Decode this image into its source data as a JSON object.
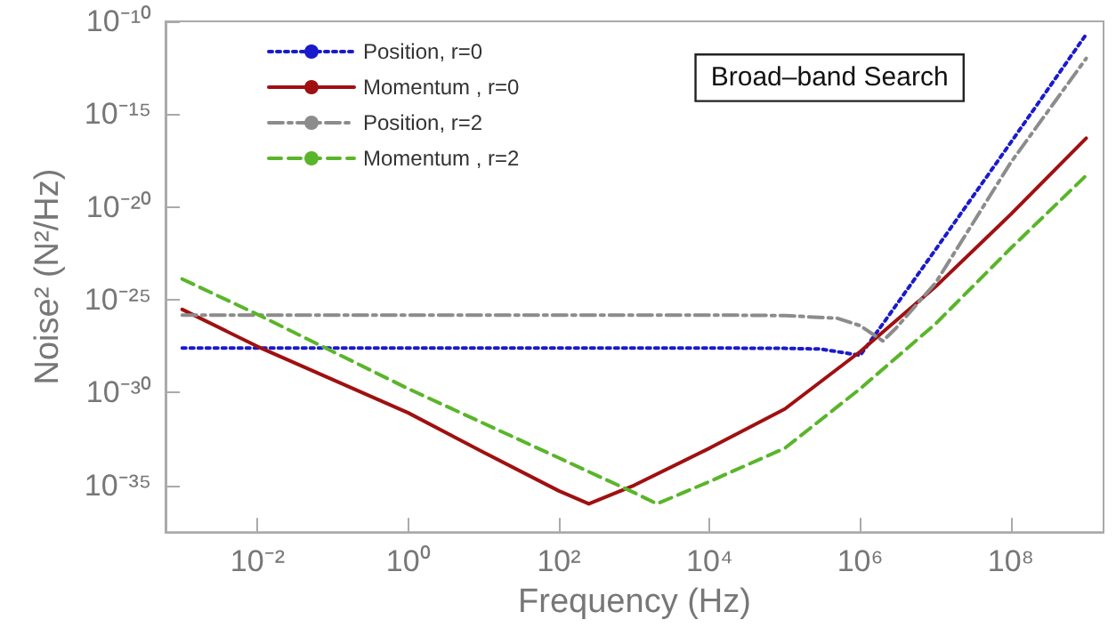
{
  "chart_data": {
    "type": "line",
    "xlabel": "Frequency (Hz)",
    "ylabel": "Noise² (N²/Hz)",
    "annotations": [
      "Broad–band Search"
    ],
    "log": "xy",
    "grid": false,
    "legend": "top left",
    "marker": "none",
    "xlim": [
      0.0006,
      1700000000.0
    ],
    "ylim": [
      3e-38,
      1e-10
    ],
    "xticks": [
      {
        "value": 0.01,
        "label": "10⁻²"
      },
      {
        "value": 1,
        "label": "10⁰"
      },
      {
        "value": 100,
        "label": "10²"
      },
      {
        "value": 10000,
        "label": "10⁴"
      },
      {
        "value": 1000000,
        "label": "10⁶"
      },
      {
        "value": 100000000,
        "label": "10⁸"
      }
    ],
    "yticks": [
      {
        "value": 1e-35,
        "label": "10⁻³⁵"
      },
      {
        "value": 1e-30,
        "label": "10⁻³⁰"
      },
      {
        "value": 1e-25,
        "label": "10⁻²⁵"
      },
      {
        "value": 1e-20,
        "label": "10⁻²⁰"
      },
      {
        "value": 1e-15,
        "label": "10⁻¹⁵"
      },
      {
        "value": 1e-10,
        "label": "10⁻¹⁰"
      }
    ],
    "series": [
      {
        "name": "Position, r=0",
        "color": "#1a1acc",
        "line_style": "dotted",
        "x": [
          0.001,
          0.01,
          1,
          100,
          10000,
          100000,
          300000,
          1000000,
          2000000,
          10000000,
          100000000,
          1000000000
        ],
        "values": [
          2.5e-28,
          2.5e-28,
          2.5e-28,
          2.5e-28,
          2.5e-28,
          2.4e-28,
          2.2e-28,
          1e-28,
          5e-27,
          5e-23,
          3e-17,
          2e-11
        ]
      },
      {
        "name": "Momentum , r=0",
        "color": "#a01010",
        "line_style": "solid",
        "x": [
          0.001,
          0.01,
          1,
          10,
          100,
          250,
          1000,
          10000,
          100000,
          1000000,
          10000000,
          100000000,
          1000000000
        ],
        "values": [
          3e-26,
          3e-28,
          8e-32,
          6e-34,
          5e-36,
          1e-36,
          1e-35,
          1e-33,
          1.3e-31,
          1.6e-28,
          5e-25,
          4e-21,
          5e-17
        ]
      },
      {
        "name": "Position, r=2",
        "color": "#8c8c8c",
        "line_style": "dashdot",
        "x": [
          0.001,
          0.01,
          1,
          100,
          10000,
          100000,
          500000,
          1000000,
          2000000,
          3000000,
          10000000,
          100000000,
          1000000000
        ],
        "values": [
          1.5e-26,
          1.5e-26,
          1.5e-26,
          1.5e-26,
          1.5e-26,
          1.4e-26,
          1e-26,
          4e-27,
          6e-28,
          3e-27,
          8e-25,
          2.5e-18,
          1e-12
        ]
      },
      {
        "name": "Momentum , r=2",
        "color": "#5ab52a",
        "line_style": "dashed",
        "x": [
          0.001,
          0.01,
          1,
          100,
          1000,
          2000,
          10000,
          100000,
          1000000,
          10000000,
          100000000,
          1000000000
        ],
        "values": [
          1.3e-24,
          1.6e-26,
          1.6e-30,
          3e-34,
          4e-36,
          1e-36,
          1.6e-35,
          1e-33,
          1.6e-30,
          5e-27,
          6e-23,
          5e-19
        ]
      }
    ]
  }
}
